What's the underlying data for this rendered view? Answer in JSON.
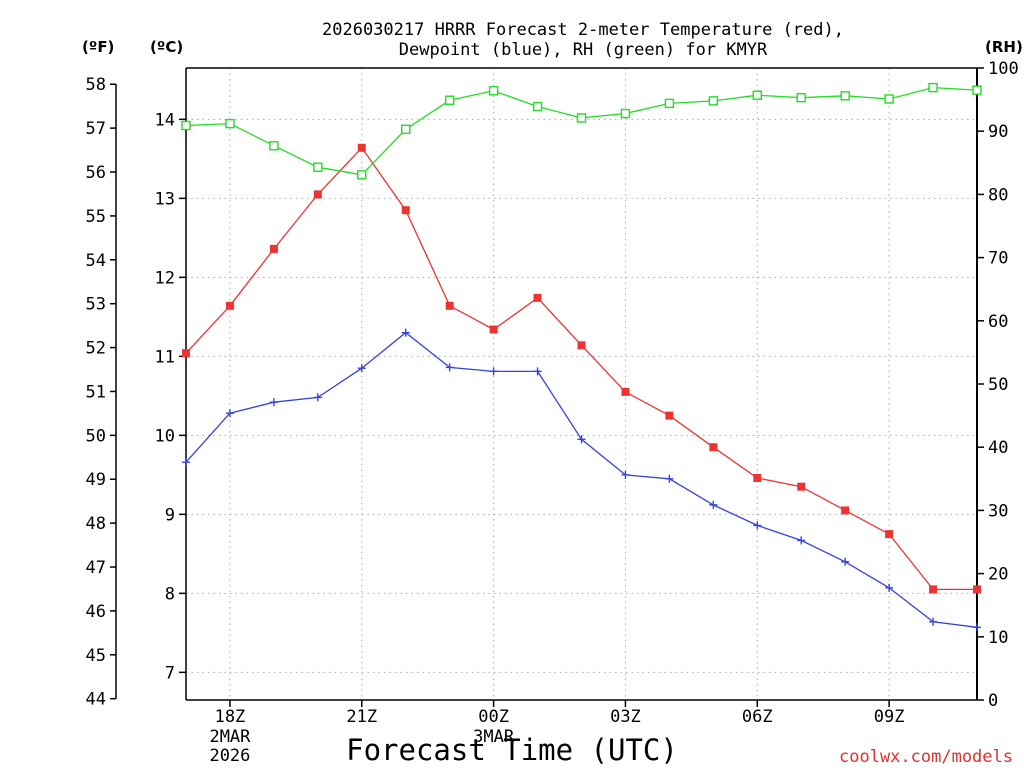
{
  "chart_data": {
    "type": "line",
    "title": [
      "2026030217 HRRR Forecast 2-meter Temperature (red),",
      "Dewpoint (blue), RH (green) for KMYR"
    ],
    "xlabel": "Forecast Time (UTC)",
    "credit": "coolwx.com/models",
    "axis_headers": {
      "left_f": "(ºF)",
      "left_c": "(ºC)",
      "right_rh": "(RH)"
    },
    "x_ticks": [
      {
        "hour": 1,
        "label": "18Z",
        "sub": [
          "2MAR",
          "2026"
        ]
      },
      {
        "hour": 4,
        "label": "21Z",
        "sub": []
      },
      {
        "hour": 7,
        "label": "00Z",
        "sub": [
          "3MAR"
        ]
      },
      {
        "hour": 10,
        "label": "03Z",
        "sub": []
      },
      {
        "hour": 13,
        "label": "06Z",
        "sub": []
      },
      {
        "hour": 16,
        "label": "09Z",
        "sub": []
      }
    ],
    "x_range": [
      0,
      18
    ],
    "celsius_range": [
      6.65,
      14.65
    ],
    "celsius_ticks": [
      7,
      8,
      9,
      10,
      11,
      12,
      13,
      14
    ],
    "fahrenheit_ticks": [
      44,
      45,
      46,
      47,
      48,
      49,
      50,
      51,
      52,
      53,
      54,
      55,
      56,
      57,
      58
    ],
    "rh_range": [
      0,
      100
    ],
    "rh_ticks": [
      0,
      10,
      20,
      30,
      40,
      50,
      60,
      70,
      80,
      90,
      100
    ],
    "series": [
      {
        "name": "Temperature",
        "unit": "C",
        "axis": "celsius",
        "color": "#ee3333",
        "marker": "filled-square",
        "x": [
          0,
          1,
          2,
          3,
          4,
          5,
          6,
          7,
          8,
          9,
          10,
          11,
          12,
          13,
          14,
          15,
          16,
          17,
          18
        ],
        "values": [
          11.04,
          11.64,
          12.36,
          13.05,
          13.64,
          12.85,
          11.64,
          11.34,
          11.74,
          11.14,
          10.55,
          10.25,
          9.85,
          9.46,
          9.35,
          9.05,
          8.75,
          8.05,
          8.05
        ]
      },
      {
        "name": "Dewpoint",
        "unit": "C",
        "axis": "celsius",
        "color": "#3344dd",
        "marker": "plus",
        "x": [
          0,
          1,
          2,
          3,
          4,
          5,
          6,
          7,
          8,
          9,
          10,
          11,
          12,
          13,
          14,
          15,
          16,
          17,
          18
        ],
        "values": [
          9.66,
          10.28,
          10.42,
          10.48,
          10.85,
          11.3,
          10.86,
          10.81,
          10.81,
          9.95,
          9.5,
          9.45,
          9.12,
          8.86,
          8.67,
          8.4,
          8.07,
          7.64,
          7.57
        ]
      },
      {
        "name": "RH",
        "unit": "%",
        "axis": "rh",
        "color": "#22dd22",
        "marker": "open-square",
        "x": [
          0,
          1,
          2,
          3,
          4,
          5,
          6,
          7,
          8,
          9,
          10,
          11,
          12,
          13,
          14,
          15,
          16,
          17,
          18
        ],
        "values": [
          90.9,
          91.2,
          87.7,
          84.3,
          83.1,
          90.3,
          94.9,
          96.4,
          93.9,
          92.1,
          92.8,
          94.4,
          94.8,
          95.7,
          95.3,
          95.6,
          95.1,
          96.9,
          96.5
        ]
      }
    ]
  }
}
